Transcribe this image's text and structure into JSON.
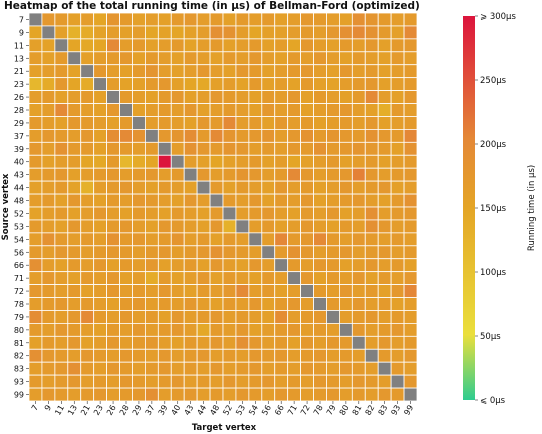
{
  "chart_data": {
    "type": "heatmap",
    "title": "Heatmap of the total running time (in μs) of Bellman-Ford (optimized)",
    "xlabel": "Target vertex",
    "ylabel": "Source vertex",
    "colorbar_label": "Running time (in μs)",
    "colorbar_ticks": [
      "⩽ 0μs",
      "50μs",
      "100μs",
      "150μs",
      "200μs",
      "250μs",
      "⩾ 300μs"
    ],
    "colorbar_range": [
      0,
      300
    ],
    "colors": {
      "low": "#2ecc8f",
      "mid_low": "#eadf3c",
      "mid": "#e4a526",
      "mid_high": "#e48837",
      "high": "#dc143c",
      "diagonal": "#808080"
    },
    "vertices": [
      "7",
      "9",
      "11",
      "13",
      "21",
      "23",
      "26",
      "28",
      "29",
      "37",
      "39",
      "40",
      "43",
      "44",
      "48",
      "52",
      "53",
      "54",
      "56",
      "66",
      "71",
      "72",
      "78",
      "79",
      "80",
      "81",
      "82",
      "83",
      "93",
      "99"
    ],
    "values": [
      [
        null,
        175,
        170,
        160,
        165,
        150,
        180,
        170,
        160,
        165,
        160,
        170,
        175,
        165,
        170,
        160,
        170,
        165,
        170,
        160,
        165,
        175,
        170,
        165,
        160,
        190,
        180,
        170,
        165,
        170
      ],
      [
        150,
        null,
        160,
        130,
        140,
        155,
        165,
        160,
        165,
        150,
        155,
        150,
        160,
        165,
        190,
        185,
        165,
        150,
        160,
        160,
        165,
        170,
        165,
        175,
        190,
        200,
        185,
        170,
        160,
        200
      ],
      [
        160,
        155,
        null,
        150,
        145,
        150,
        200,
        165,
        170,
        160,
        165,
        170,
        155,
        165,
        170,
        160,
        165,
        170,
        160,
        165,
        150,
        175,
        165,
        160,
        170,
        165,
        175,
        160,
        170,
        175
      ],
      [
        165,
        160,
        170,
        null,
        160,
        165,
        170,
        175,
        160,
        170,
        165,
        160,
        170,
        165,
        160,
        170,
        165,
        175,
        165,
        160,
        170,
        165,
        175,
        165,
        160,
        170,
        165,
        160,
        170,
        165
      ],
      [
        160,
        165,
        170,
        155,
        null,
        175,
        165,
        160,
        170,
        180,
        165,
        160,
        165,
        175,
        165,
        160,
        175,
        170,
        160,
        165,
        170,
        175,
        165,
        160,
        175,
        165,
        170,
        160,
        165,
        170
      ],
      [
        120,
        140,
        175,
        150,
        140,
        null,
        165,
        155,
        160,
        170,
        175,
        160,
        150,
        145,
        160,
        165,
        155,
        170,
        160,
        165,
        155,
        170,
        160,
        155,
        165,
        170,
        175,
        160,
        165,
        170
      ],
      [
        165,
        170,
        160,
        165,
        170,
        160,
        null,
        170,
        165,
        160,
        170,
        175,
        160,
        165,
        175,
        170,
        165,
        160,
        170,
        165,
        175,
        160,
        170,
        165,
        160,
        170,
        200,
        165,
        160,
        175
      ],
      [
        160,
        165,
        200,
        170,
        165,
        160,
        175,
        null,
        160,
        165,
        170,
        165,
        175,
        160,
        165,
        170,
        165,
        160,
        175,
        165,
        170,
        160,
        165,
        170,
        175,
        165,
        160,
        135,
        170,
        165
      ],
      [
        170,
        165,
        160,
        175,
        170,
        165,
        160,
        170,
        null,
        165,
        170,
        165,
        160,
        175,
        170,
        200,
        165,
        170,
        160,
        175,
        165,
        170,
        160,
        165,
        170,
        165,
        175,
        160,
        165,
        170
      ],
      [
        165,
        175,
        170,
        165,
        175,
        160,
        195,
        200,
        185,
        null,
        175,
        180,
        195,
        170,
        200,
        180,
        170,
        175,
        180,
        165,
        175,
        185,
        170,
        180,
        175,
        170,
        185,
        175,
        170,
        205
      ],
      [
        175,
        165,
        185,
        170,
        170,
        160,
        175,
        170,
        165,
        170,
        null,
        165,
        185,
        175,
        170,
        180,
        175,
        165,
        170,
        165,
        175,
        170,
        185,
        170,
        175,
        180,
        175,
        170,
        160,
        185
      ],
      [
        170,
        160,
        165,
        165,
        150,
        145,
        170,
        120,
        140,
        150,
        300,
        null,
        165,
        160,
        150,
        160,
        165,
        170,
        160,
        165,
        150,
        160,
        165,
        170,
        160,
        165,
        170,
        160,
        165,
        170
      ],
      [
        165,
        170,
        175,
        160,
        165,
        170,
        175,
        165,
        170,
        175,
        165,
        170,
        null,
        175,
        165,
        170,
        180,
        175,
        165,
        170,
        200,
        175,
        165,
        170,
        175,
        210,
        175,
        165,
        170,
        175
      ],
      [
        160,
        165,
        170,
        155,
        130,
        165,
        170,
        175,
        165,
        160,
        170,
        165,
        160,
        null,
        170,
        160,
        170,
        165,
        160,
        175,
        165,
        170,
        160,
        165,
        175,
        165,
        170,
        175,
        160,
        165
      ],
      [
        165,
        170,
        160,
        175,
        165,
        160,
        170,
        165,
        175,
        170,
        165,
        160,
        175,
        165,
        null,
        170,
        165,
        175,
        160,
        170,
        165,
        175,
        160,
        165,
        170,
        175,
        165,
        160,
        170,
        185
      ],
      [
        155,
        165,
        170,
        160,
        165,
        175,
        165,
        160,
        170,
        165,
        160,
        170,
        165,
        160,
        170,
        null,
        165,
        170,
        175,
        165,
        160,
        170,
        165,
        175,
        160,
        165,
        190,
        165,
        170,
        175
      ],
      [
        170,
        165,
        160,
        175,
        165,
        160,
        170,
        175,
        165,
        160,
        175,
        170,
        165,
        160,
        175,
        130,
        null,
        165,
        170,
        160,
        165,
        175,
        165,
        160,
        170,
        165,
        190,
        175,
        165,
        170
      ],
      [
        165,
        185,
        170,
        165,
        170,
        165,
        185,
        170,
        175,
        165,
        170,
        180,
        165,
        170,
        160,
        170,
        165,
        null,
        165,
        205,
        170,
        175,
        200,
        170,
        165,
        175,
        170,
        165,
        170,
        165
      ],
      [
        170,
        165,
        175,
        170,
        165,
        170,
        175,
        170,
        165,
        170,
        175,
        165,
        170,
        175,
        185,
        175,
        170,
        165,
        null,
        170,
        185,
        175,
        165,
        170,
        175,
        165,
        170,
        175,
        165,
        170
      ],
      [
        190,
        165,
        160,
        170,
        165,
        175,
        160,
        170,
        165,
        175,
        160,
        165,
        170,
        160,
        175,
        165,
        160,
        175,
        165,
        null,
        170,
        165,
        175,
        170,
        160,
        165,
        175,
        165,
        170,
        160
      ],
      [
        165,
        175,
        165,
        160,
        170,
        165,
        175,
        160,
        165,
        140,
        170,
        160,
        165,
        175,
        160,
        170,
        165,
        160,
        170,
        165,
        null,
        175,
        160,
        170,
        165,
        175,
        160,
        170,
        165,
        175
      ],
      [
        175,
        170,
        165,
        170,
        160,
        165,
        175,
        165,
        170,
        165,
        175,
        165,
        160,
        170,
        165,
        175,
        200,
        165,
        170,
        160,
        165,
        null,
        170,
        165,
        175,
        165,
        170,
        160,
        175,
        205
      ],
      [
        165,
        170,
        175,
        165,
        170,
        165,
        160,
        170,
        175,
        165,
        170,
        165,
        175,
        165,
        160,
        170,
        165,
        175,
        160,
        170,
        175,
        165,
        null,
        170,
        165,
        175,
        165,
        170,
        160,
        165
      ],
      [
        195,
        170,
        165,
        175,
        200,
        170,
        165,
        175,
        165,
        170,
        160,
        175,
        165,
        170,
        175,
        165,
        170,
        165,
        160,
        195,
        165,
        170,
        175,
        null,
        165,
        170,
        175,
        165,
        170,
        165
      ],
      [
        170,
        165,
        175,
        170,
        165,
        160,
        170,
        165,
        175,
        165,
        170,
        175,
        165,
        145,
        170,
        165,
        175,
        160,
        165,
        170,
        175,
        165,
        170,
        165,
        null,
        175,
        165,
        170,
        175,
        165
      ],
      [
        160,
        170,
        165,
        175,
        160,
        165,
        175,
        165,
        170,
        175,
        165,
        160,
        170,
        165,
        175,
        165,
        190,
        175,
        165,
        170,
        160,
        175,
        165,
        175,
        170,
        null,
        165,
        175,
        165,
        170
      ],
      [
        190,
        175,
        170,
        165,
        175,
        170,
        165,
        175,
        170,
        165,
        175,
        165,
        170,
        175,
        165,
        170,
        165,
        175,
        170,
        175,
        165,
        170,
        175,
        165,
        170,
        165,
        null,
        170,
        165,
        175
      ],
      [
        165,
        170,
        175,
        190,
        170,
        165,
        175,
        170,
        165,
        170,
        175,
        165,
        170,
        165,
        175,
        165,
        170,
        175,
        165,
        170,
        165,
        175,
        170,
        165,
        175,
        170,
        165,
        null,
        170,
        165
      ],
      [
        170,
        165,
        170,
        175,
        165,
        170,
        165,
        175,
        170,
        165,
        170,
        175,
        165,
        170,
        165,
        175,
        165,
        170,
        175,
        165,
        170,
        165,
        175,
        170,
        165,
        175,
        170,
        165,
        null,
        175
      ],
      [
        165,
        175,
        170,
        165,
        170,
        175,
        165,
        170,
        175,
        190,
        165,
        170,
        175,
        165,
        170,
        165,
        175,
        170,
        165,
        175,
        170,
        165,
        170,
        175,
        165,
        170,
        165,
        175,
        170,
        null
      ]
    ]
  }
}
